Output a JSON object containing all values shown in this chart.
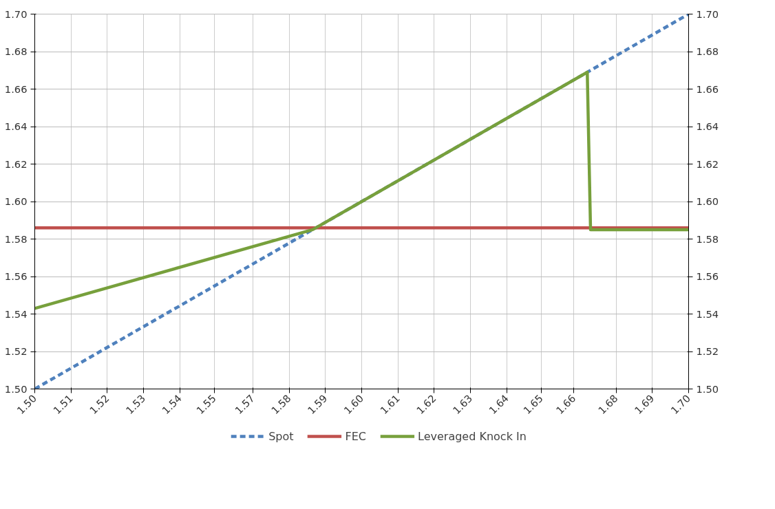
{
  "chart_data": {
    "type": "line",
    "xlim": [
      1.5,
      1.7
    ],
    "xticks": [
      {
        "value": 1.5,
        "label": "1.50"
      },
      {
        "value": 1.5111,
        "label": "1.51"
      },
      {
        "value": 1.5222,
        "label": "1.52"
      },
      {
        "value": 1.5333,
        "label": "1.53"
      },
      {
        "value": 1.5444,
        "label": "1.54"
      },
      {
        "value": 1.5549,
        "label": "1.55"
      },
      {
        "value": 1.5667,
        "label": "1.57"
      },
      {
        "value": 1.5778,
        "label": "1.58"
      },
      {
        "value": 1.5889,
        "label": "1.59"
      },
      {
        "value": 1.6,
        "label": "1.60"
      },
      {
        "value": 1.6111,
        "label": "1.61"
      },
      {
        "value": 1.6222,
        "label": "1.62"
      },
      {
        "value": 1.6333,
        "label": "1.63"
      },
      {
        "value": 1.6444,
        "label": "1.64"
      },
      {
        "value": 1.6549,
        "label": "1.65"
      },
      {
        "value": 1.6649,
        "label": "1.66"
      },
      {
        "value": 1.6778,
        "label": "1.68"
      },
      {
        "value": 1.6889,
        "label": "1.69"
      },
      {
        "value": 1.7,
        "label": "1.70"
      }
    ],
    "ylim": [
      1.5,
      1.7
    ],
    "yticks": [
      {
        "value": 1.5,
        "label": "1.50"
      },
      {
        "value": 1.52,
        "label": "1.52"
      },
      {
        "value": 1.54,
        "label": "1.54"
      },
      {
        "value": 1.56,
        "label": "1.56"
      },
      {
        "value": 1.58,
        "label": "1.58"
      },
      {
        "value": 1.6,
        "label": "1.60"
      },
      {
        "value": 1.62,
        "label": "1.62"
      },
      {
        "value": 1.64,
        "label": "1.64"
      },
      {
        "value": 1.66,
        "label": "1.66"
      },
      {
        "value": 1.68,
        "label": "1.68"
      },
      {
        "value": 1.7,
        "label": "1.70"
      }
    ],
    "y2lim": [
      1.5,
      1.7
    ],
    "y2ticks": [
      {
        "value": 1.5,
        "label": "1.50"
      },
      {
        "value": 1.52,
        "label": "1.52"
      },
      {
        "value": 1.54,
        "label": "1.54"
      },
      {
        "value": 1.56,
        "label": "1.56"
      },
      {
        "value": 1.58,
        "label": "1.58"
      },
      {
        "value": 1.6,
        "label": "1.60"
      },
      {
        "value": 1.62,
        "label": "1.62"
      },
      {
        "value": 1.64,
        "label": "1.64"
      },
      {
        "value": 1.66,
        "label": "1.66"
      },
      {
        "value": 1.68,
        "label": "1.68"
      },
      {
        "value": 1.7,
        "label": "1.70"
      }
    ],
    "grid": true,
    "legend": "bottom",
    "series": [
      {
        "name": "Spot",
        "color": "#4f81bd",
        "line_style": "dashed",
        "x": [
          1.5,
          1.7
        ],
        "values": [
          1.5,
          1.7
        ]
      },
      {
        "name": "FEC",
        "color": "#c0504d",
        "line_style": "solid",
        "x": [
          1.5,
          1.7
        ],
        "values": [
          1.586,
          1.586
        ]
      },
      {
        "name": "Leveraged Knock In",
        "color": "#77a03c",
        "line_style": "solid",
        "x": [
          1.5,
          1.585,
          1.669,
          1.67,
          1.7
        ],
        "values": [
          1.543,
          1.585,
          1.669,
          1.585,
          1.585
        ]
      }
    ]
  }
}
